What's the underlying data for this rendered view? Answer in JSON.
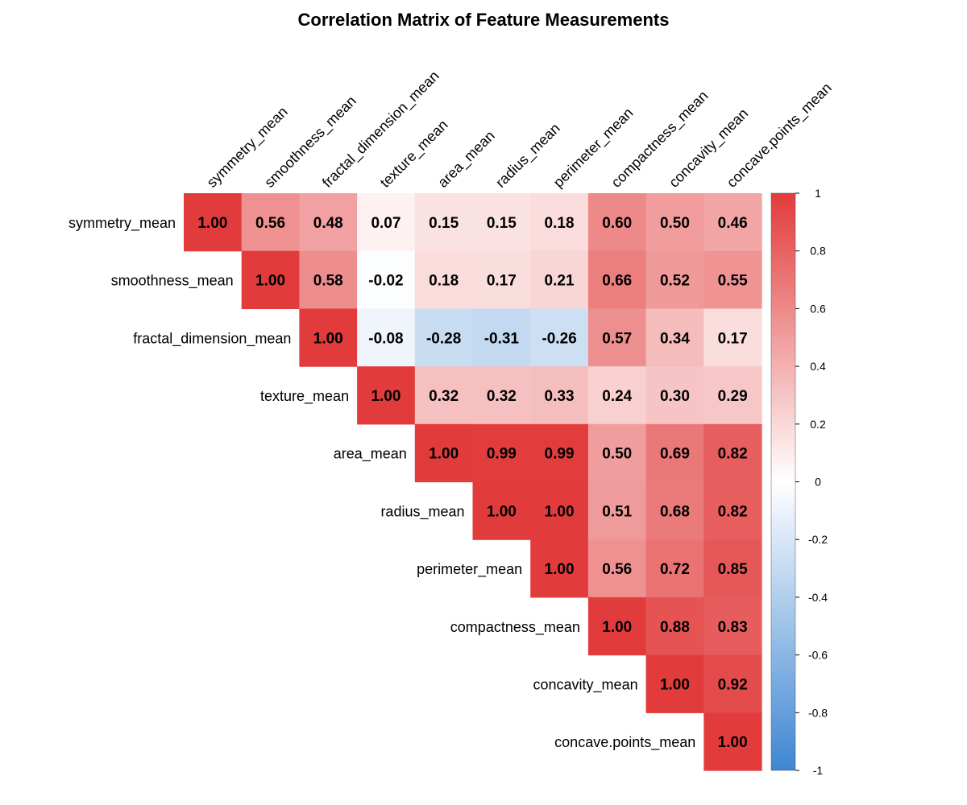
{
  "chart_data": {
    "type": "heatmap",
    "title": "Correlation Matrix of Feature Measurements",
    "variables": [
      "symmetry_mean",
      "smoothness_mean",
      "fractal_dimension_mean",
      "texture_mean",
      "area_mean",
      "radius_mean",
      "perimeter_mean",
      "compactness_mean",
      "concavity_mean",
      "concave.points_mean"
    ],
    "matrix_upper": [
      [
        1.0,
        0.56,
        0.48,
        0.07,
        0.15,
        0.15,
        0.18,
        0.6,
        0.5,
        0.46
      ],
      [
        null,
        1.0,
        0.58,
        -0.02,
        0.18,
        0.17,
        0.21,
        0.66,
        0.52,
        0.55
      ],
      [
        null,
        null,
        1.0,
        -0.08,
        -0.28,
        -0.31,
        -0.26,
        0.57,
        0.34,
        0.17
      ],
      [
        null,
        null,
        null,
        1.0,
        0.32,
        0.32,
        0.33,
        0.24,
        0.3,
        0.29
      ],
      [
        null,
        null,
        null,
        null,
        1.0,
        0.99,
        0.99,
        0.5,
        0.69,
        0.82
      ],
      [
        null,
        null,
        null,
        null,
        null,
        1.0,
        1.0,
        0.51,
        0.68,
        0.82
      ],
      [
        null,
        null,
        null,
        null,
        null,
        null,
        1.0,
        0.56,
        0.72,
        0.85
      ],
      [
        null,
        null,
        null,
        null,
        null,
        null,
        null,
        1.0,
        0.88,
        0.83
      ],
      [
        null,
        null,
        null,
        null,
        null,
        null,
        null,
        null,
        1.0,
        0.92
      ],
      [
        null,
        null,
        null,
        null,
        null,
        null,
        null,
        null,
        null,
        1.0
      ]
    ],
    "value_format": "2 decimals",
    "color_scale": {
      "low": "#3e86d2",
      "mid": "#ffffff",
      "high": "#e23b3b",
      "range": [
        -1,
        1
      ]
    },
    "legend": {
      "position": "right",
      "ticks": [
        1,
        0.8,
        0.6,
        0.4,
        0.2,
        0,
        -0.2,
        -0.4,
        -0.6,
        -0.8,
        -1
      ],
      "tick_labels": [
        "1",
        "0.8",
        "0.6",
        "0.4",
        "0.2",
        "0",
        "-0.2",
        "-0.4",
        "-0.6",
        "-0.8",
        "-1"
      ]
    },
    "grid": false
  }
}
